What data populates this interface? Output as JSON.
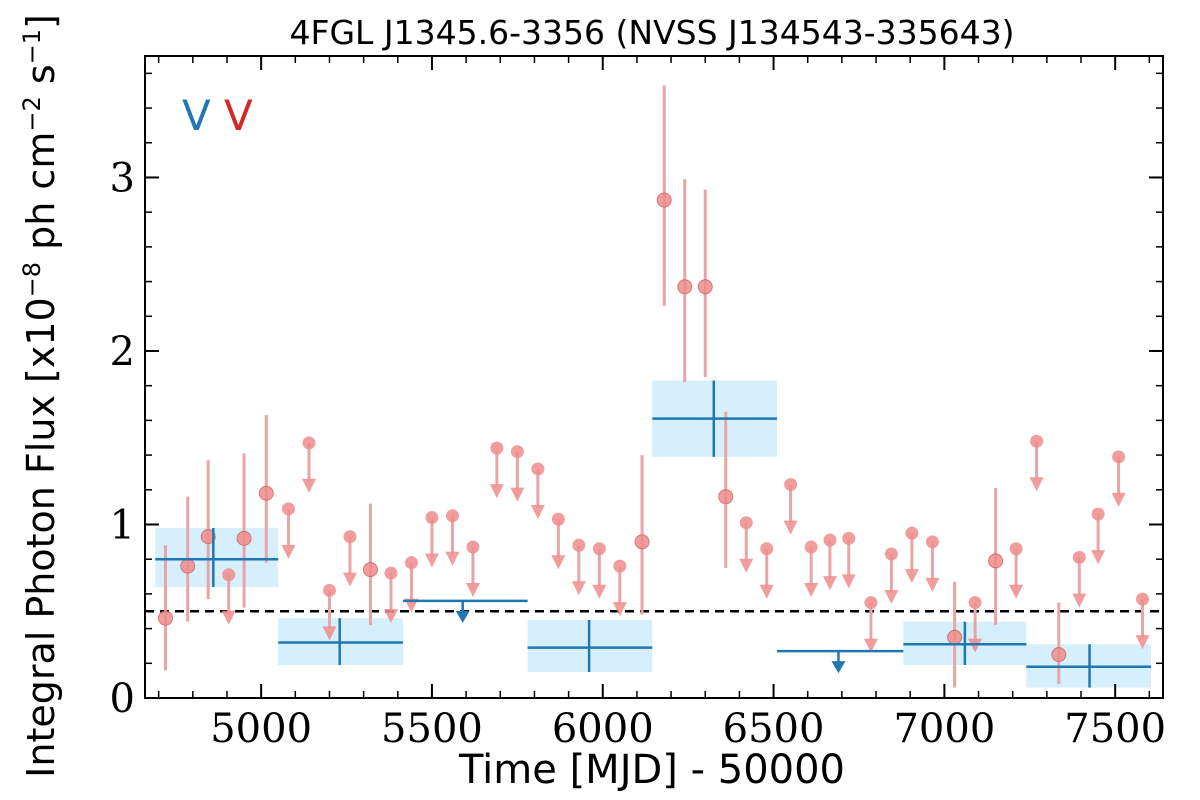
{
  "chart_data": {
    "type": "scatter",
    "title": "4FGL J1345.6-3356 (NVSS J134543-335643)",
    "xlabel": "Time [MJD] - 50000",
    "ylabel": "Integral Photon Flux [x10",
    "ylabel_exp1": "−8",
    "ylabel_mid": " ph cm",
    "ylabel_exp2": "−2",
    "ylabel_mid2": " s",
    "ylabel_exp3": "−1",
    "ylabel_end": "]",
    "xlim": [
      4660,
      7640
    ],
    "ylim": [
      0,
      3.7
    ],
    "x_ticks": [
      5000,
      5500,
      6000,
      6500,
      7000,
      7500
    ],
    "y_ticks": [
      0,
      1,
      2,
      3
    ],
    "legend_markers": [
      "V",
      "V"
    ],
    "legend_position": "top-left",
    "threshold": 0.5,
    "colors": {
      "blue": "#1f77b4",
      "red": "#d62728",
      "box": "#d6effc",
      "red_face": "#f08c8c",
      "red_line": "#e8a5a5"
    },
    "blue_detections": [
      {
        "x": 4860,
        "x0": 4690,
        "x1": 5050,
        "y": 0.8,
        "lo": 0.64,
        "hi": 0.98
      },
      {
        "x": 5230,
        "x0": 5050,
        "x1": 5415,
        "y": 0.32,
        "lo": 0.19,
        "hi": 0.46
      },
      {
        "x": 5960,
        "x0": 5780,
        "x1": 6145,
        "y": 0.29,
        "lo": 0.15,
        "hi": 0.45
      },
      {
        "x": 6325,
        "x0": 6145,
        "x1": 6510,
        "y": 1.61,
        "lo": 1.39,
        "hi": 1.83
      },
      {
        "x": 7060,
        "x0": 6880,
        "x1": 7240,
        "y": 0.31,
        "lo": 0.19,
        "hi": 0.44
      },
      {
        "x": 7425,
        "x0": 7240,
        "x1": 7605,
        "y": 0.18,
        "lo": 0.06,
        "hi": 0.31
      }
    ],
    "blue_upper_limits": [
      {
        "x": 5590,
        "x0": 5415,
        "x1": 5780,
        "y": 0.56
      },
      {
        "x": 6690,
        "x0": 6510,
        "x1": 6880,
        "y": 0.27
      }
    ],
    "red_detections": [
      {
        "x": 4720,
        "y": 0.46,
        "lo": 0.16,
        "hi": 0.88
      },
      {
        "x": 4785,
        "y": 0.76,
        "lo": 0.44,
        "hi": 1.16
      },
      {
        "x": 4845,
        "y": 0.93,
        "lo": 0.57,
        "hi": 1.37
      },
      {
        "x": 4950,
        "y": 0.92,
        "lo": 0.52,
        "hi": 1.41
      },
      {
        "x": 5015,
        "y": 1.18,
        "lo": 0.78,
        "hi": 1.63
      },
      {
        "x": 5320,
        "y": 0.74,
        "lo": 0.42,
        "hi": 1.12
      },
      {
        "x": 6115,
        "y": 0.9,
        "lo": 0.48,
        "hi": 1.4
      },
      {
        "x": 6180,
        "y": 2.87,
        "lo": 2.26,
        "hi": 3.53
      },
      {
        "x": 6240,
        "y": 2.37,
        "lo": 1.82,
        "hi": 2.99
      },
      {
        "x": 6300,
        "y": 2.37,
        "lo": 1.85,
        "hi": 2.93
      },
      {
        "x": 6360,
        "y": 1.16,
        "lo": 0.75,
        "hi": 1.65
      },
      {
        "x": 7030,
        "y": 0.35,
        "lo": 0.06,
        "hi": 0.67
      },
      {
        "x": 7150,
        "y": 0.79,
        "lo": 0.42,
        "hi": 1.21
      },
      {
        "x": 7335,
        "y": 0.25,
        "lo": 0.08,
        "hi": 0.55
      }
    ],
    "red_upper_limits": [
      {
        "x": 4905,
        "y": 0.71
      },
      {
        "x": 5080,
        "y": 1.09
      },
      {
        "x": 5140,
        "y": 1.47
      },
      {
        "x": 5200,
        "y": 0.62
      },
      {
        "x": 5260,
        "y": 0.93
      },
      {
        "x": 5380,
        "y": 0.72
      },
      {
        "x": 5440,
        "y": 0.78
      },
      {
        "x": 5500,
        "y": 1.04
      },
      {
        "x": 5560,
        "y": 1.05
      },
      {
        "x": 5620,
        "y": 0.87
      },
      {
        "x": 5690,
        "y": 1.44
      },
      {
        "x": 5750,
        "y": 1.42
      },
      {
        "x": 5810,
        "y": 1.32
      },
      {
        "x": 5870,
        "y": 1.03
      },
      {
        "x": 5930,
        "y": 0.88
      },
      {
        "x": 5990,
        "y": 0.86
      },
      {
        "x": 6050,
        "y": 0.76
      },
      {
        "x": 6420,
        "y": 1.01
      },
      {
        "x": 6480,
        "y": 0.86
      },
      {
        "x": 6550,
        "y": 1.23
      },
      {
        "x": 6610,
        "y": 0.87
      },
      {
        "x": 6665,
        "y": 0.91
      },
      {
        "x": 6720,
        "y": 0.92
      },
      {
        "x": 6785,
        "y": 0.55
      },
      {
        "x": 6845,
        "y": 0.83
      },
      {
        "x": 6905,
        "y": 0.95
      },
      {
        "x": 6965,
        "y": 0.9
      },
      {
        "x": 7090,
        "y": 0.55
      },
      {
        "x": 7210,
        "y": 0.86
      },
      {
        "x": 7270,
        "y": 1.48
      },
      {
        "x": 7395,
        "y": 0.81
      },
      {
        "x": 7450,
        "y": 1.06
      },
      {
        "x": 7510,
        "y": 1.39
      },
      {
        "x": 7580,
        "y": 0.57
      }
    ]
  }
}
